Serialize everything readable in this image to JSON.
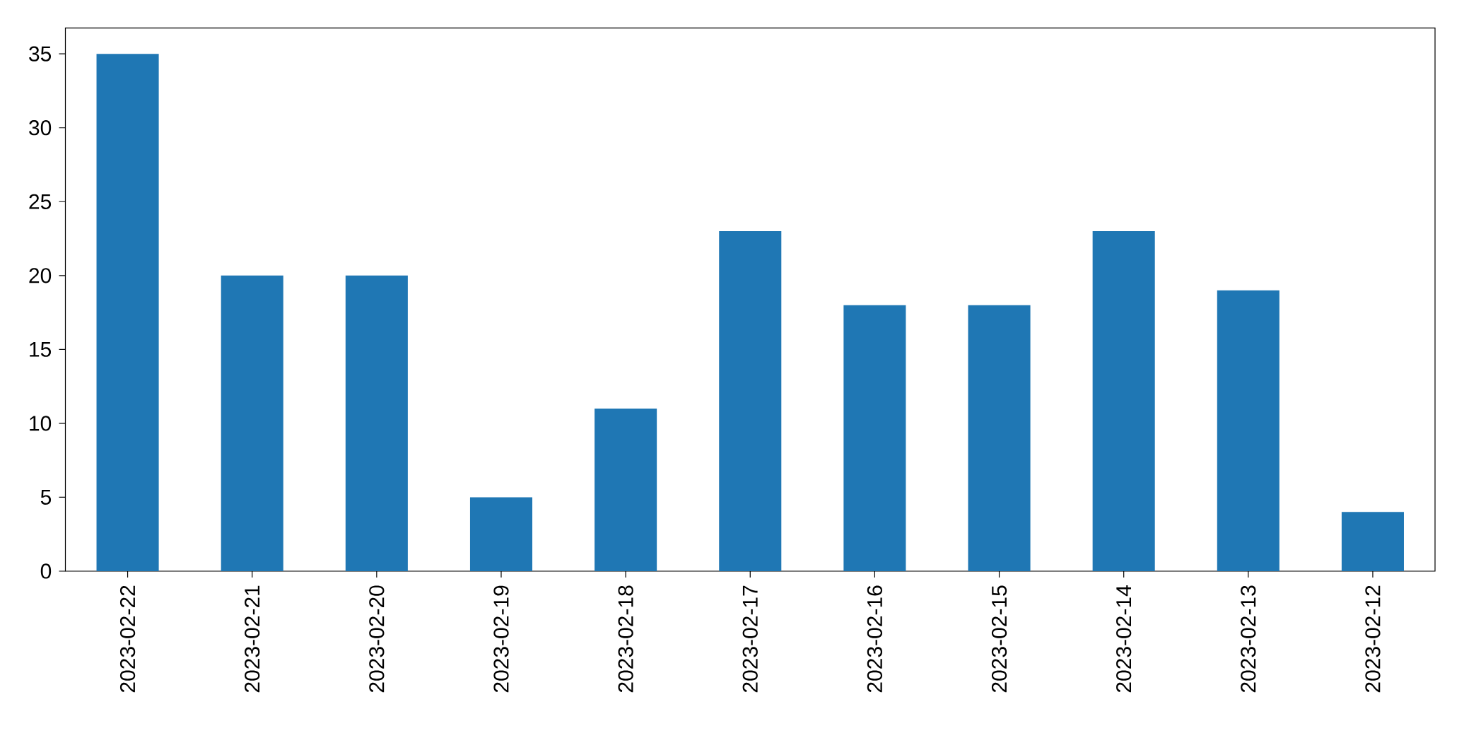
{
  "chart_data": {
    "type": "bar",
    "categories": [
      "2023-02-22",
      "2023-02-21",
      "2023-02-20",
      "2023-02-19",
      "2023-02-18",
      "2023-02-17",
      "2023-02-16",
      "2023-02-15",
      "2023-02-14",
      "2023-02-13",
      "2023-02-12"
    ],
    "values": [
      35,
      20,
      20,
      5,
      11,
      23,
      18,
      18,
      23,
      19,
      4
    ],
    "color": "#1f77b4",
    "ylim": [
      0,
      36.75
    ],
    "yticks": [
      0,
      5,
      10,
      15,
      20,
      25,
      30,
      35
    ]
  }
}
